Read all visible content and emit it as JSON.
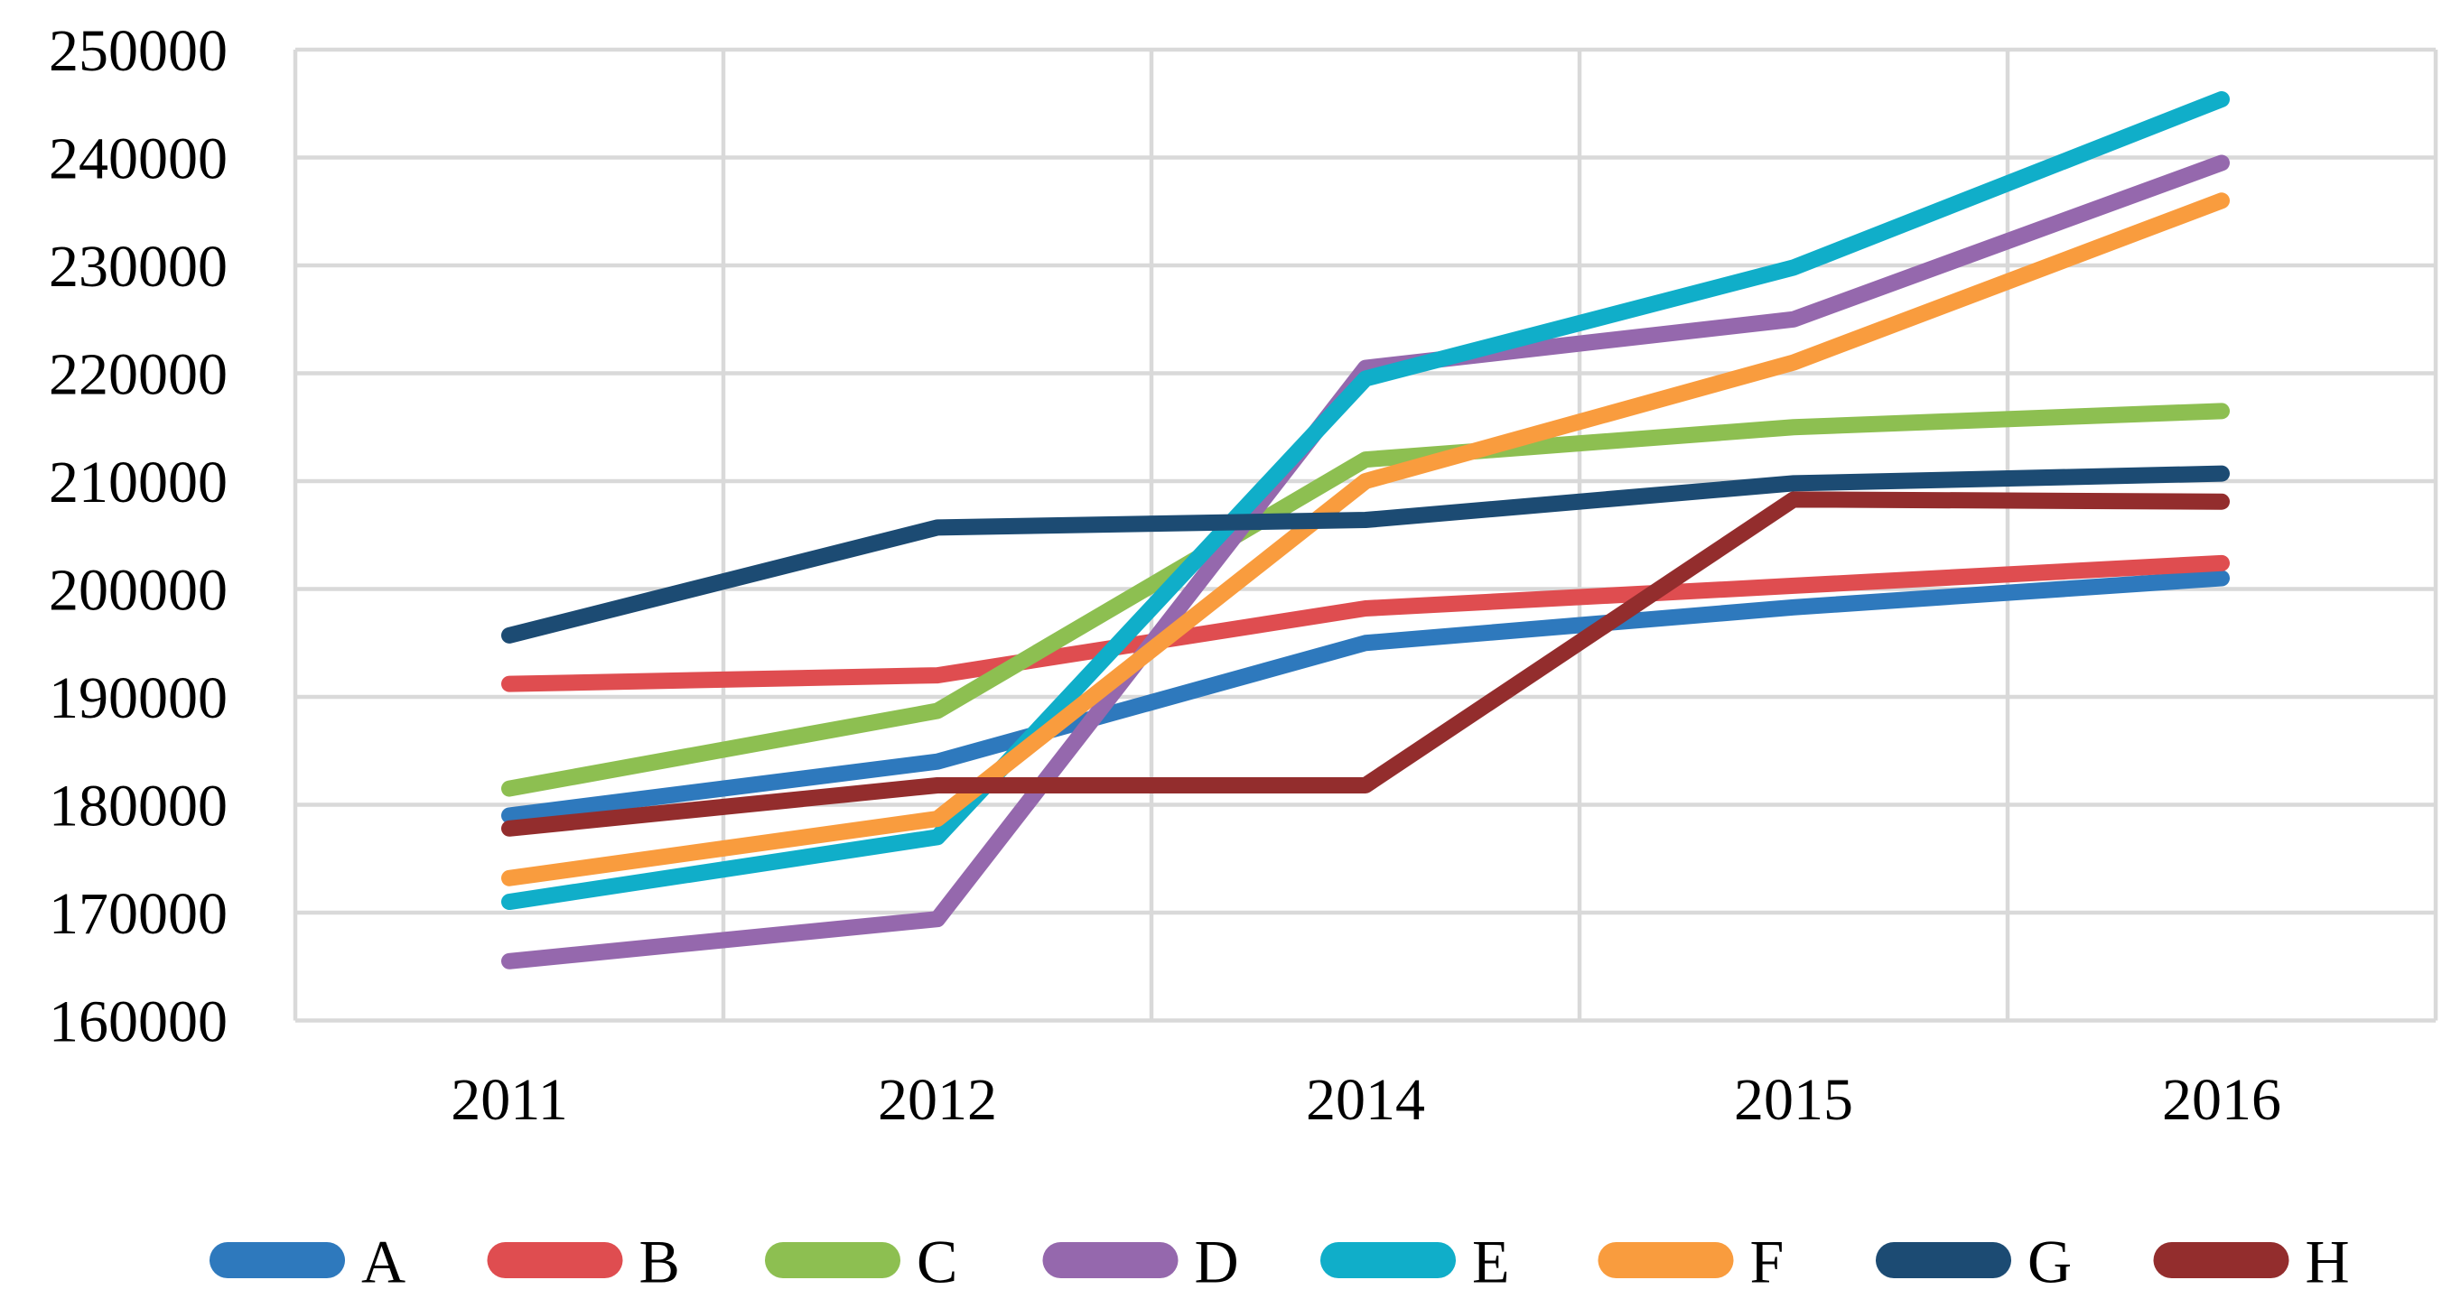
{
  "chart_data": {
    "type": "line",
    "title": "",
    "categories": [
      "2011",
      "2012",
      "2014",
      "2015",
      "2016"
    ],
    "series": [
      {
        "name": "A",
        "color": "#2E79BD",
        "values": [
          179000,
          184000,
          195000,
          198300,
          201000
        ]
      },
      {
        "name": "B",
        "color": "#DF4D50",
        "values": [
          191200,
          192000,
          198200,
          200300,
          202400
        ]
      },
      {
        "name": "C",
        "color": "#8DBF51",
        "values": [
          181500,
          188700,
          212000,
          215000,
          216500
        ]
      },
      {
        "name": "D",
        "color": "#9568AD",
        "values": [
          165500,
          169400,
          220500,
          225000,
          239500
        ]
      },
      {
        "name": "E",
        "color": "#10AEC9",
        "values": [
          171000,
          177000,
          219500,
          229800,
          245400
        ]
      },
      {
        "name": "F",
        "color": "#F99C3E",
        "values": [
          173200,
          178700,
          210000,
          221000,
          236000
        ]
      },
      {
        "name": "G",
        "color": "#1C4B73",
        "values": [
          195700,
          205700,
          206400,
          209800,
          210700
        ]
      },
      {
        "name": "H",
        "color": "#932D2D",
        "values": [
          177800,
          181800,
          181800,
          208300,
          208100
        ]
      }
    ],
    "xlabel": "",
    "ylabel": "",
    "ylim": [
      160000,
      250000
    ],
    "y_tick_step": 10000,
    "y_tick_labels": [
      "160000",
      "170000",
      "180000",
      "190000",
      "200000",
      "210000",
      "220000",
      "230000",
      "240000",
      "250000"
    ],
    "x_tick_labels": [
      "2011",
      "2012",
      "2014",
      "2015",
      "2016"
    ],
    "grid": true,
    "gridline_color": "#D9D9D9",
    "background_color": "#FFFFFF",
    "text_color": "#000000",
    "legend_position": "bottom",
    "legend_entries": [
      "A",
      "B",
      "C",
      "D",
      "E",
      "F",
      "G",
      "H"
    ]
  }
}
